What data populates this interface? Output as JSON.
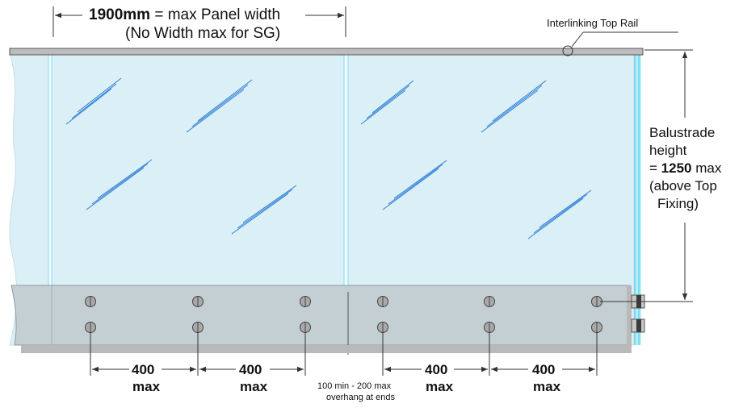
{
  "panel_width": {
    "value_bold": "1900mm",
    "rest": " = max Panel width",
    "note": "(No Width max for SG)"
  },
  "top_rail_label": "Interlinking Top Rail",
  "height_label": {
    "line1": "Balustrade",
    "line2": "height",
    "line3_prefix": "= ",
    "line3_bold": "1250",
    "line3_suffix": " max",
    "line4": "(above Top",
    "line5": "Fixing)"
  },
  "spacing": [
    {
      "value": "400",
      "unit": "max"
    },
    {
      "value": "400",
      "unit": "max"
    },
    {
      "value": "400",
      "unit": "max"
    },
    {
      "value": "400",
      "unit": "max"
    }
  ],
  "overhang": {
    "line1": "100 min - 200 max",
    "line2": "overhang at ends"
  },
  "colors": {
    "glass": "#dbeff6",
    "glass_edge": "#bfe3ee",
    "base": "#c4cfd3",
    "rail": "#bcbcbc",
    "etch": "#2f7fd6",
    "bolt": "#a9a9a9",
    "dim_line": "#333333",
    "edge_cyan": "#63d6ee"
  }
}
